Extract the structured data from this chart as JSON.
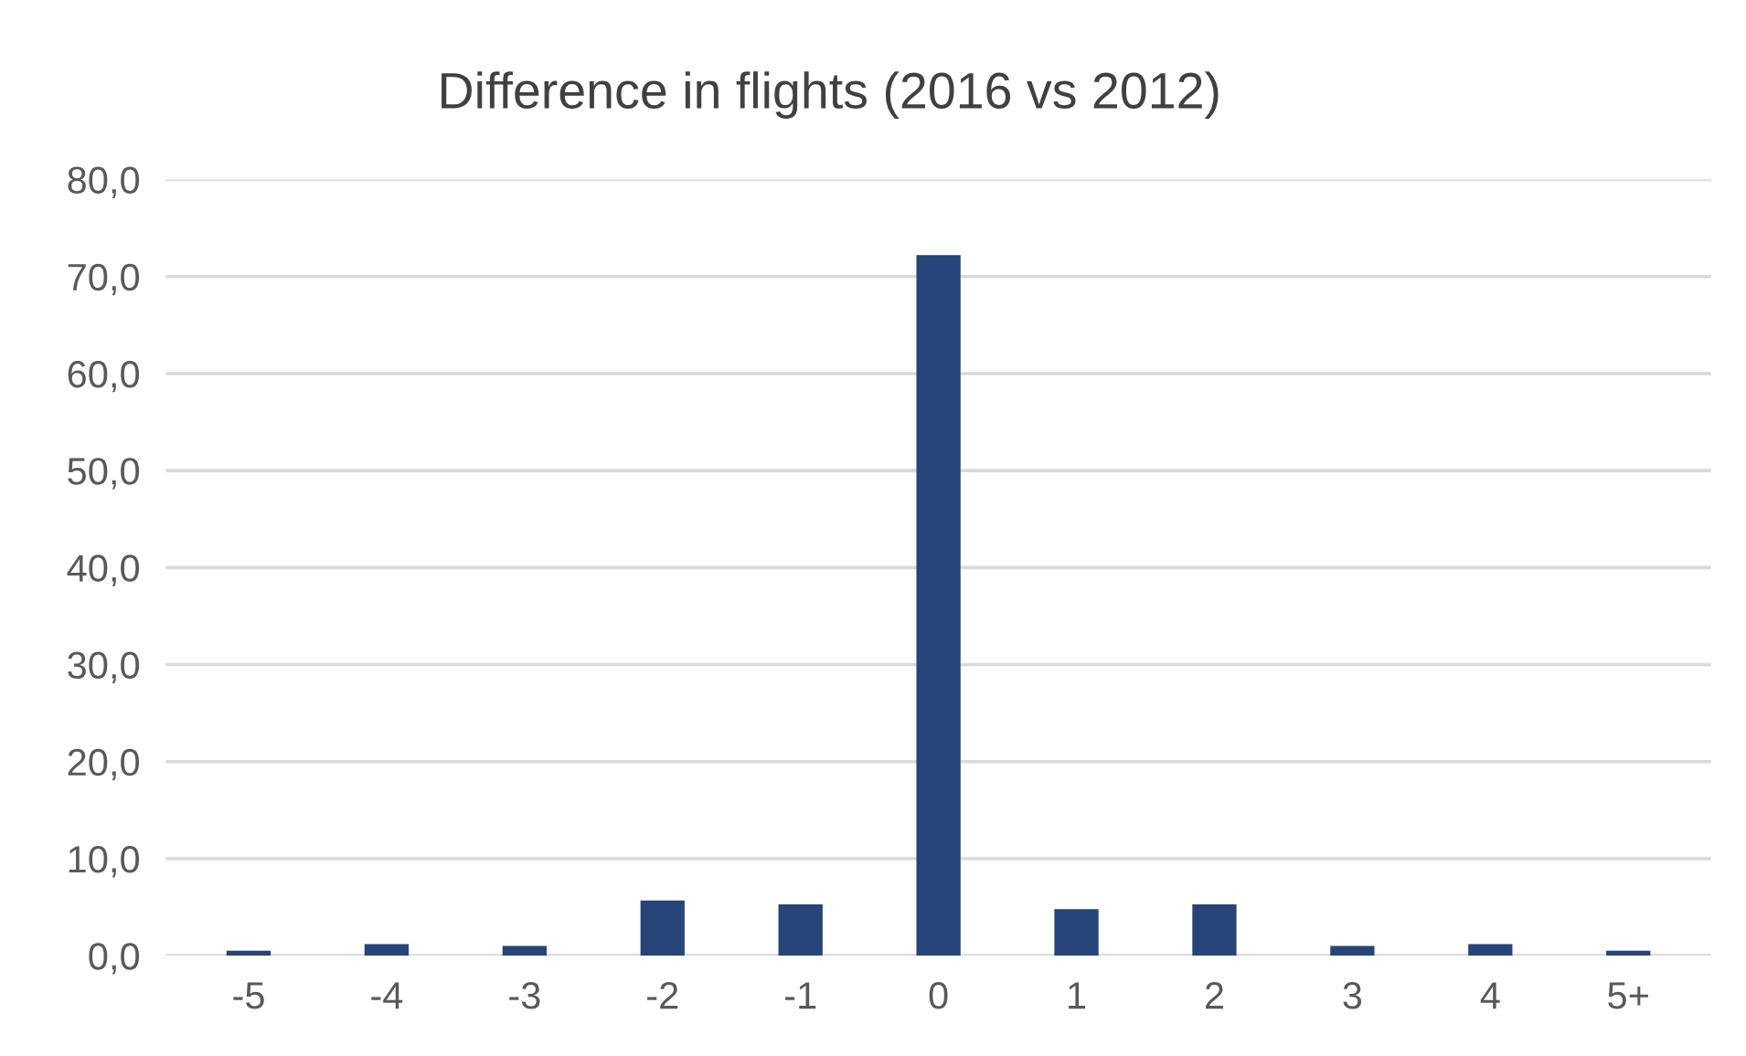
{
  "chart_data": {
    "type": "bar",
    "title": "Difference in flights (2016 vs 2012)",
    "categories": [
      "-5",
      "-4",
      "-3",
      "-2",
      "-1",
      "0",
      "1",
      "2",
      "3",
      "4",
      "5+"
    ],
    "values": [
      0.5,
      1.2,
      1.0,
      5.7,
      5.3,
      72.2,
      4.8,
      5.3,
      1.0,
      1.2,
      0.5
    ],
    "color": "#264478",
    "ylim": [
      0,
      80
    ],
    "yticks": [
      {
        "value": 0,
        "label": "0,0"
      },
      {
        "value": 10,
        "label": "10,0"
      },
      {
        "value": 20,
        "label": "20,0"
      },
      {
        "value": 30,
        "label": "30,0"
      },
      {
        "value": 40,
        "label": "40,0"
      },
      {
        "value": 50,
        "label": "50,0"
      },
      {
        "value": 60,
        "label": "60,0"
      },
      {
        "value": 70,
        "label": "70,0"
      },
      {
        "value": 80,
        "label": "80,0"
      }
    ],
    "grid": "y"
  }
}
